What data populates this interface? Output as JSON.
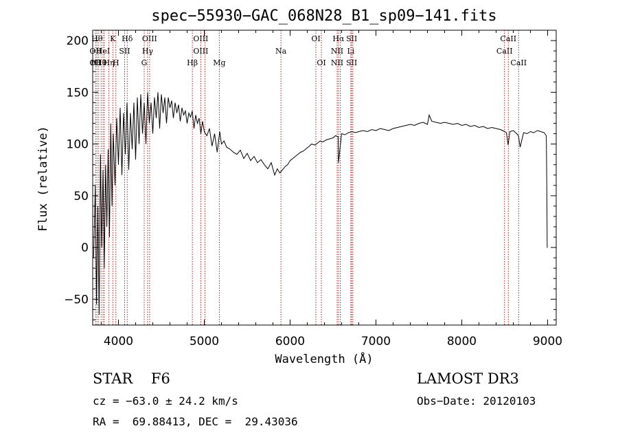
{
  "chart_data": {
    "type": "line",
    "title": "spec−55930−GAC_068N28_B1_sp09−141.fits",
    "xlabel": "Wavelength (Å)",
    "ylabel": "Flux (relative)",
    "xlim": [
      3700,
      9100
    ],
    "ylim": [
      -75,
      210
    ],
    "xticks": [
      {
        "value": 4000,
        "label": "4000"
      },
      {
        "value": 5000,
        "label": "5000"
      },
      {
        "value": 6000,
        "label": "6000"
      },
      {
        "value": 7000,
        "label": "7000"
      },
      {
        "value": 8000,
        "label": "8000"
      },
      {
        "value": 9000,
        "label": "9000"
      }
    ],
    "yticks": [
      {
        "value": -50,
        "label": "−50"
      },
      {
        "value": 0,
        "label": "0"
      },
      {
        "value": 50,
        "label": "50"
      },
      {
        "value": 100,
        "label": "100"
      },
      {
        "value": 150,
        "label": "150"
      },
      {
        "value": 200,
        "label": "200"
      }
    ],
    "grid": false,
    "series": [
      {
        "color": "#000000",
        "x": [
          3710,
          3730,
          3745,
          3760,
          3775,
          3790,
          3805,
          3820,
          3835,
          3850,
          3865,
          3880,
          3895,
          3910,
          3925,
          3940,
          3960,
          3980,
          4000,
          4020,
          4040,
          4060,
          4080,
          4100,
          4120,
          4140,
          4160,
          4180,
          4200,
          4220,
          4240,
          4260,
          4280,
          4300,
          4320,
          4340,
          4360,
          4380,
          4400,
          4420,
          4440,
          4460,
          4480,
          4500,
          4520,
          4540,
          4560,
          4580,
          4600,
          4620,
          4640,
          4660,
          4680,
          4700,
          4720,
          4740,
          4760,
          4780,
          4800,
          4820,
          4840,
          4860,
          4880,
          4900,
          4920,
          4940,
          4960,
          4980,
          5000,
          5030,
          5060,
          5090,
          5120,
          5150,
          5180,
          5200,
          5230,
          5260,
          5300,
          5340,
          5380,
          5420,
          5460,
          5500,
          5540,
          5580,
          5620,
          5660,
          5700,
          5740,
          5780,
          5820,
          5850,
          5880,
          5910,
          5940,
          5970,
          6000,
          6030,
          6060,
          6090,
          6120,
          6150,
          6180,
          6210,
          6250,
          6290,
          6320,
          6350,
          6380,
          6420,
          6460,
          6500,
          6530,
          6560,
          6563,
          6600,
          6640,
          6680,
          6720,
          6760,
          6800,
          6850,
          6900,
          6950,
          7000,
          7050,
          7100,
          7150,
          7200,
          7250,
          7300,
          7350,
          7400,
          7450,
          7500,
          7550,
          7600,
          7620,
          7650,
          7700,
          7750,
          7800,
          7850,
          7900,
          7950,
          8000,
          8050,
          8100,
          8150,
          8200,
          8250,
          8300,
          8350,
          8400,
          8450,
          8500,
          8520,
          8540,
          8560,
          8600,
          8640,
          8660,
          8680,
          8720,
          8760,
          8800,
          8840,
          8880,
          8920,
          8960,
          8985,
          8990,
          8995,
          9000
        ],
        "y": [
          -10,
          60,
          -55,
          40,
          -65,
          90,
          0,
          75,
          -20,
          80,
          20,
          95,
          10,
          120,
          40,
          110,
          60,
          125,
          80,
          135,
          70,
          130,
          90,
          140,
          75,
          130,
          95,
          140,
          85,
          145,
          100,
          148,
          110,
          140,
          100,
          150,
          120,
          140,
          110,
          145,
          125,
          150,
          115,
          148,
          130,
          145,
          120,
          145,
          135,
          142,
          125,
          140,
          130,
          138,
          122,
          135,
          128,
          132,
          120,
          130,
          126,
          132,
          115,
          128,
          120,
          125,
          110,
          122,
          112,
          108,
          115,
          98,
          110,
          92,
          112,
          100,
          103,
          97,
          95,
          92,
          90,
          94,
          86,
          91,
          84,
          88,
          82,
          85,
          80,
          76,
          82,
          70,
          76,
          72,
          75,
          78,
          80,
          84,
          86,
          88,
          90,
          92,
          93,
          95,
          97,
          100,
          99,
          101,
          103,
          102,
          104,
          105,
          106,
          108,
          107,
          82,
          110,
          109,
          111,
          112,
          111,
          112,
          113,
          112,
          114,
          113,
          115,
          114,
          113,
          115,
          116,
          117,
          118,
          119,
          118,
          120,
          121,
          119,
          128,
          122,
          121,
          120,
          121,
          120,
          119,
          120,
          118,
          119,
          117,
          118,
          116,
          117,
          115,
          116,
          115,
          114,
          112,
          111,
          99,
          112,
          113,
          110,
          108,
          97,
          111,
          110,
          112,
          111,
          113,
          112,
          111,
          108,
          60,
          0,
          0
        ]
      }
    ],
    "annotations": [
      {
        "wavelength": 3734,
        "lines": [
          "",
          "OII",
          "OII"
        ]
      },
      {
        "wavelength": 3750,
        "lines": [
          "Hθ",
          "",
          ""
        ]
      },
      {
        "wavelength": 3770,
        "lines": [
          "",
          "",
          "H10"
        ]
      },
      {
        "wavelength": 3798,
        "lines": [
          "",
          "",
          "H9"
        ]
      },
      {
        "wavelength": 3820,
        "lines": [
          "",
          "HeI",
          ""
        ]
      },
      {
        "wavelength": 3835,
        "lines": [
          "",
          "",
          ""
        ]
      },
      {
        "wavelength": 3889,
        "lines": [
          "",
          "",
          "Hη"
        ]
      },
      {
        "wavelength": 3934,
        "lines": [
          "K",
          "",
          ""
        ]
      },
      {
        "wavelength": 3970,
        "lines": [
          "",
          "",
          "H"
        ]
      },
      {
        "wavelength": 4072,
        "lines": [
          "",
          "SII",
          ""
        ]
      },
      {
        "wavelength": 4102,
        "lines": [
          "Hδ",
          "",
          ""
        ]
      },
      {
        "wavelength": 4300,
        "lines": [
          "",
          "",
          "G"
        ]
      },
      {
        "wavelength": 4340,
        "lines": [
          "",
          "Hγ",
          ""
        ]
      },
      {
        "wavelength": 4363,
        "lines": [
          "OIII",
          "",
          ""
        ]
      },
      {
        "wavelength": 4861,
        "lines": [
          "",
          "",
          "Hβ"
        ]
      },
      {
        "wavelength": 4959,
        "lines": [
          "OIII",
          "OIII",
          ""
        ]
      },
      {
        "wavelength": 5007,
        "lines": [
          "",
          "",
          ""
        ]
      },
      {
        "wavelength": 5175,
        "lines": [
          "",
          "",
          "Mg"
        ]
      },
      {
        "wavelength": 5893,
        "lines": [
          "",
          "Na",
          ""
        ]
      },
      {
        "wavelength": 6300,
        "lines": [
          "OI",
          "",
          ""
        ]
      },
      {
        "wavelength": 6364,
        "lines": [
          "",
          "",
          "OI"
        ]
      },
      {
        "wavelength": 6548,
        "lines": [
          "",
          "NII",
          "NII"
        ]
      },
      {
        "wavelength": 6563,
        "lines": [
          "Hα",
          "",
          ""
        ]
      },
      {
        "wavelength": 6584,
        "lines": [
          "",
          "",
          ""
        ]
      },
      {
        "wavelength": 6707,
        "lines": [
          "",
          "Li",
          ""
        ]
      },
      {
        "wavelength": 6717,
        "lines": [
          "SII",
          "",
          "SII"
        ]
      },
      {
        "wavelength": 6731,
        "lines": [
          "",
          "",
          ""
        ]
      },
      {
        "wavelength": 8498,
        "lines": [
          "",
          "CaII",
          ""
        ]
      },
      {
        "wavelength": 8542,
        "lines": [
          "CaII",
          "",
          ""
        ]
      },
      {
        "wavelength": 8662,
        "lines": [
          "",
          "",
          "CaII"
        ]
      }
    ],
    "annotation_color": "#b00000"
  },
  "info": {
    "class": "STAR    F6",
    "survey": "LAMOST DR3",
    "cz": "cz = −63.0 ± 24.2 km/s",
    "obs_date": "Obs−Date: 20120103",
    "coords": "RA =  69.88413, DEC =  29.43036"
  }
}
